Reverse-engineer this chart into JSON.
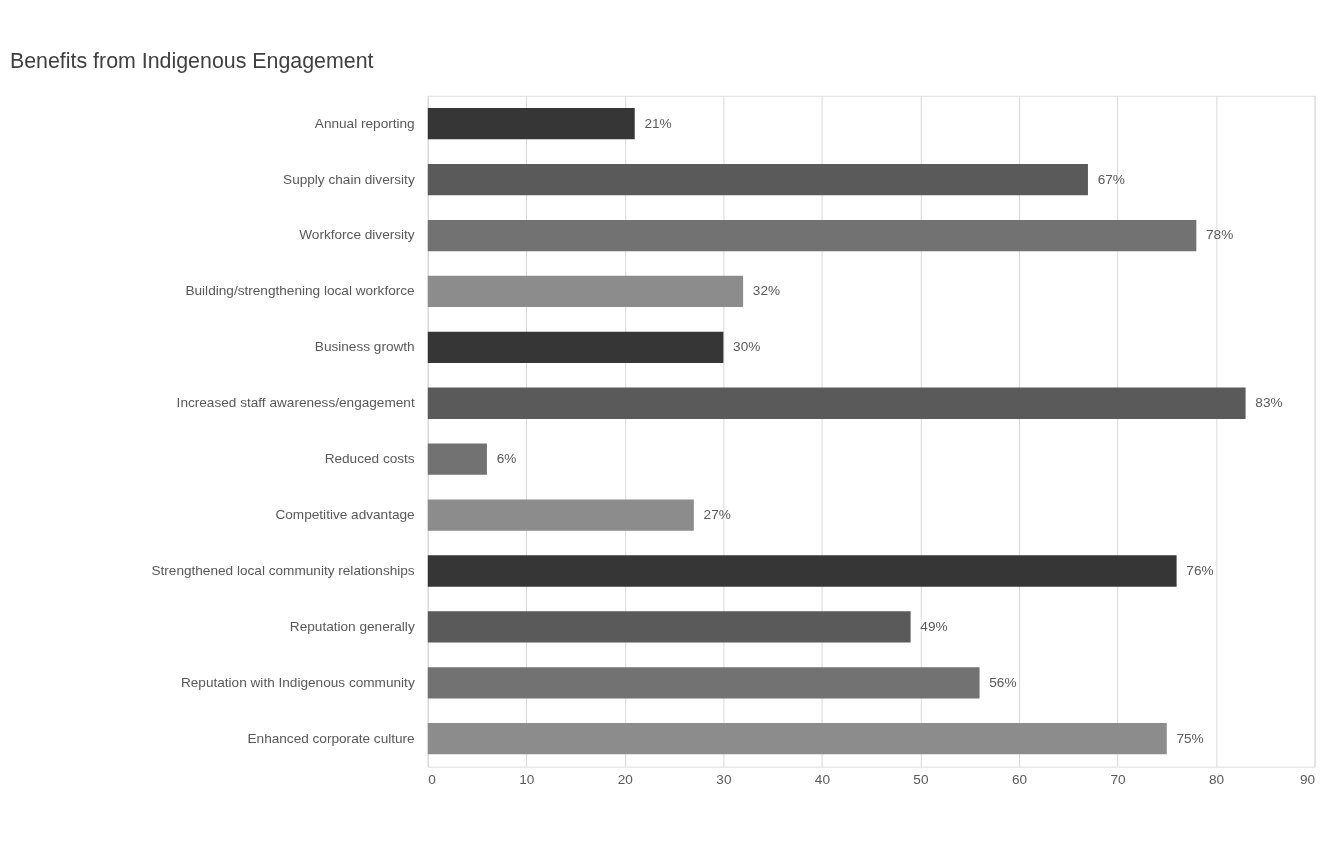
{
  "chart_data": {
    "type": "bar",
    "orientation": "horizontal",
    "title": "Benefits from Indigenous Engagement",
    "categories": [
      "Annual reporting",
      "Supply chain diversity",
      "Workforce diversity",
      "Building/strengthening local workforce",
      "Business growth ",
      "Increased staff awareness/engagement",
      "Reduced costs ",
      "Competitive advantage",
      "Strengthened local community relationships",
      "Reputation generally",
      "Reputation with Indigenous community",
      "Enhanced corporate culture"
    ],
    "values": [
      21,
      67,
      78,
      32,
      30,
      83,
      6,
      27,
      76,
      49,
      56,
      75
    ],
    "value_labels": [
      "21%",
      "67%",
      "78%",
      "32%",
      "30%",
      "83%",
      "6%",
      "27%",
      "76%",
      "49%",
      "56%",
      "75%"
    ],
    "colors": [
      "#363636",
      "#5a5a5a",
      "#727272",
      "#8c8c8c",
      "#363636",
      "#5a5a5a",
      "#727272",
      "#8c8c8c",
      "#363636",
      "#5a5a5a",
      "#727272",
      "#8c8c8c"
    ],
    "xlim": [
      0,
      90
    ],
    "xticks": [
      0,
      10,
      20,
      30,
      40,
      50,
      60,
      70,
      80,
      90
    ],
    "grid": "x"
  }
}
